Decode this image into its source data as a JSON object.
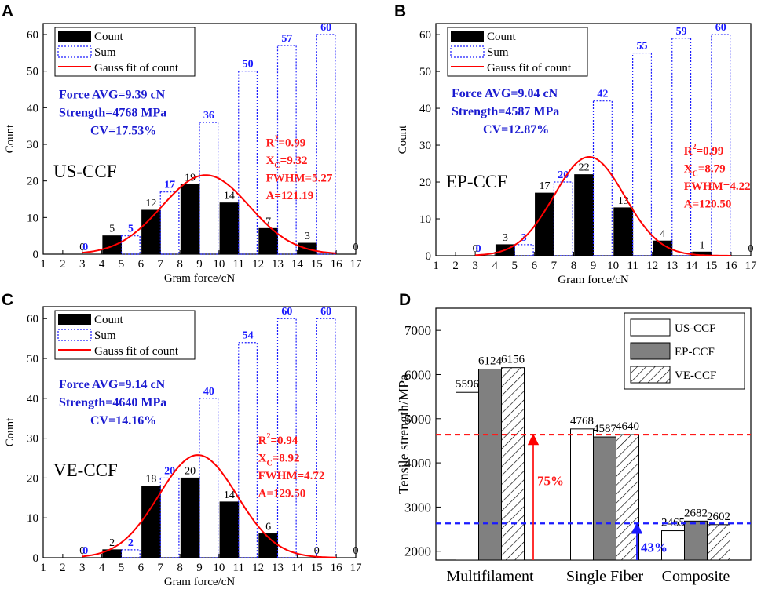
{
  "colors": {
    "count_bar": "#000000",
    "sum_bar": "#1a1aff",
    "fit": "#ff0000",
    "stat_text": "#1a1ad0",
    "fit_text": "#ff1a1a"
  },
  "chart_data": [
    {
      "panel": "A",
      "type": "bar",
      "title": "US-CCF",
      "xlabel": "Gram force/cN",
      "ylabel": "Count",
      "xlim": [
        1,
        17
      ],
      "ylim": [
        0,
        63
      ],
      "x_ticks": [
        1,
        2,
        3,
        4,
        5,
        6,
        7,
        8,
        9,
        10,
        11,
        12,
        13,
        14,
        15,
        16,
        17
      ],
      "y_ticks": [
        0,
        10,
        20,
        30,
        40,
        50,
        60
      ],
      "legend": [
        "Count",
        "Sum",
        "Gauss fit of count"
      ],
      "series": [
        {
          "name": "Count",
          "x": [
            3,
            5,
            7,
            9,
            11,
            13,
            15,
            17
          ],
          "values": [
            0,
            5,
            12,
            19,
            14,
            7,
            3,
            0
          ],
          "labels": [
            "0",
            "5",
            "12",
            "19",
            "14",
            "7",
            "3",
            "0"
          ]
        },
        {
          "name": "Sum",
          "x": [
            3,
            5,
            7,
            9,
            11,
            13,
            15
          ],
          "values": [
            0,
            5,
            17,
            36,
            50,
            57,
            60
          ],
          "labels": [
            "0",
            "5",
            "17",
            "36",
            "50",
            "57",
            "60"
          ]
        }
      ],
      "fit": {
        "xc": 9.32,
        "fwhm": 5.27,
        "area": 121.19
      },
      "stats": [
        "Force AVG=9.39 cN",
        "Strength=4768 MPa",
        "CV=17.53%"
      ],
      "fit_lines": [
        {
          "pre": "R",
          "sup": "2",
          "sub": "",
          "post": "=0.99"
        },
        {
          "pre": "X",
          "sup": "",
          "sub": "C",
          "post": "=9.32"
        },
        {
          "pre": "",
          "sup": "",
          "sub": "",
          "post": "FWHM=5.27"
        },
        {
          "pre": "",
          "sup": "",
          "sub": "",
          "post": "A=121.19"
        }
      ]
    },
    {
      "panel": "B",
      "type": "bar",
      "title": "EP-CCF",
      "xlabel": "Gram force/cN",
      "ylabel": "Count",
      "xlim": [
        1,
        17
      ],
      "ylim": [
        0,
        63
      ],
      "x_ticks": [
        1,
        2,
        3,
        4,
        5,
        6,
        7,
        8,
        9,
        10,
        11,
        12,
        13,
        14,
        15,
        16,
        17
      ],
      "y_ticks": [
        0,
        10,
        20,
        30,
        40,
        50,
        60
      ],
      "legend": [
        "Count",
        "Sum",
        "Gauss fit of count"
      ],
      "series": [
        {
          "name": "Count",
          "x": [
            3,
            5,
            7,
            9,
            11,
            13,
            15,
            17
          ],
          "values": [
            0,
            3,
            17,
            22,
            13,
            4,
            1,
            0
          ],
          "labels": [
            "0",
            "3",
            "17",
            "22",
            "13",
            "4",
            "1",
            "0"
          ]
        },
        {
          "name": "Sum",
          "x": [
            3,
            5,
            7,
            9,
            11,
            13,
            15
          ],
          "values": [
            0,
            3,
            20,
            42,
            55,
            59,
            60
          ],
          "labels": [
            "0",
            "3",
            "20",
            "42",
            "55",
            "59",
            "60"
          ]
        }
      ],
      "fit": {
        "xc": 8.79,
        "fwhm": 4.22,
        "area": 120.5
      },
      "stats": [
        "Force AVG=9.04 cN",
        "Strength=4587 MPa",
        "CV=12.87%"
      ],
      "fit_lines": [
        {
          "pre": "R",
          "sup": "2",
          "sub": "",
          "post": "=0.99"
        },
        {
          "pre": "X",
          "sup": "",
          "sub": "C",
          "post": "=8.79"
        },
        {
          "pre": "",
          "sup": "",
          "sub": "",
          "post": "FWHM=4.22"
        },
        {
          "pre": "",
          "sup": "",
          "sub": "",
          "post": "A=120.50"
        }
      ]
    },
    {
      "panel": "C",
      "type": "bar",
      "title": "VE-CCF",
      "xlabel": "Gram force/cN",
      "ylabel": "Count",
      "xlim": [
        1,
        17
      ],
      "ylim": [
        0,
        63
      ],
      "x_ticks": [
        1,
        2,
        3,
        4,
        5,
        6,
        7,
        8,
        9,
        10,
        11,
        12,
        13,
        14,
        15,
        16,
        17
      ],
      "y_ticks": [
        0,
        10,
        20,
        30,
        40,
        50,
        60
      ],
      "legend": [
        "Count",
        "Sum",
        "Gauss fit of count"
      ],
      "series": [
        {
          "name": "Count",
          "x": [
            3,
            5,
            7,
            9,
            11,
            13,
            15,
            17
          ],
          "values": [
            0,
            2,
            18,
            20,
            14,
            6,
            0,
            0
          ],
          "labels": [
            "0",
            "2",
            "18",
            "20",
            "14",
            "6",
            "0",
            "0"
          ]
        },
        {
          "name": "Sum",
          "x": [
            3,
            5,
            7,
            9,
            11,
            13,
            15
          ],
          "values": [
            0,
            2,
            20,
            40,
            54,
            60,
            60
          ],
          "labels": [
            "0",
            "2",
            "20",
            "40",
            "54",
            "60",
            "60"
          ]
        }
      ],
      "fit": {
        "xc": 8.92,
        "fwhm": 4.72,
        "area": 129.5
      },
      "stats": [
        "Force AVG=9.14 cN",
        "Strength=4640 MPa",
        "CV=14.16%"
      ],
      "fit_lines": [
        {
          "pre": "R",
          "sup": "2",
          "sub": "",
          "post": "=0.94"
        },
        {
          "pre": "X",
          "sup": "",
          "sub": "C",
          "post": "=8.92"
        },
        {
          "pre": "",
          "sup": "",
          "sub": "",
          "post": "FWHM=4.72"
        },
        {
          "pre": "",
          "sup": "",
          "sub": "",
          "post": "A=129.50"
        }
      ]
    },
    {
      "panel": "D",
      "type": "bar",
      "ylabel": "Tensile strength/MPa",
      "ylim": [
        1800,
        7500
      ],
      "y_ticks": [
        2000,
        3000,
        4000,
        5000,
        6000,
        7000
      ],
      "categories": [
        "Multifilament",
        "Single Fiber",
        "Composite"
      ],
      "series": [
        {
          "name": "US-CCF",
          "values": [
            5596,
            4768,
            2465
          ],
          "labels": [
            "5596",
            "4768",
            "2465"
          ]
        },
        {
          "name": "EP-CCF",
          "values": [
            6124,
            4587,
            2682
          ],
          "labels": [
            "6124",
            "4587",
            "2682"
          ]
        },
        {
          "name": "VE-CCF",
          "values": [
            6156,
            4640,
            2602
          ],
          "labels": [
            "6156",
            "4640",
            "2602"
          ]
        }
      ],
      "reference_lines": [
        {
          "value": 4640,
          "color": "#ff1a1a"
        },
        {
          "value": 2630,
          "color": "#1a1aff"
        }
      ],
      "annotations": [
        {
          "text": "75%",
          "color": "#ff1a1a",
          "from": 2000,
          "to": 4640
        },
        {
          "text": "43%",
          "color": "#1a1aff",
          "from": 2000,
          "to": 2630
        }
      ],
      "legend_position": "top-right"
    }
  ]
}
